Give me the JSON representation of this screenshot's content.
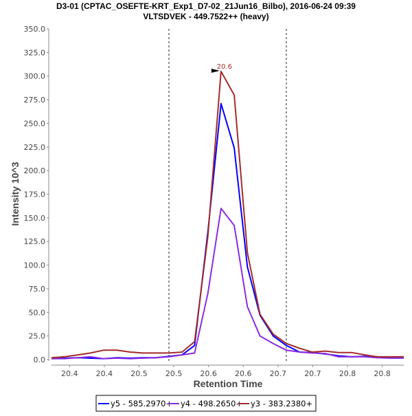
{
  "chart_data": {
    "type": "line",
    "title": "D3-01 (CPTAC_OSEFTE-KRT_Exp1_D7-02_21Jun16_Bilbo), 2016-06-24 09:39",
    "subtitle": "VLTSDVEK - 449.7522++ (heavy)",
    "xlabel": "Retention Time",
    "ylabel": "Intensity 10^3",
    "xlim": [
      20.349,
      20.856
    ],
    "ylim": [
      0,
      350
    ],
    "yticks": [
      0,
      25,
      50,
      75,
      100,
      125,
      150,
      175,
      200,
      225,
      250,
      275,
      300,
      325,
      350
    ],
    "ytick_labels": [
      "0.0",
      "25.0",
      "50.0",
      "75.0",
      "100.0",
      "125.0",
      "150.0",
      "175.0",
      "200.0",
      "225.0",
      "250.0",
      "275.0",
      "300.0",
      "325.0",
      "350.0"
    ],
    "xticks": [
      20.375,
      20.425,
      20.475,
      20.525,
      20.575,
      20.625,
      20.675,
      20.725,
      20.775,
      20.825
    ],
    "xtick_labels": [
      "20.4",
      "20.4",
      "20.5",
      "20.5",
      "20.6",
      "20.6",
      "20.7",
      "20.7",
      "20.8",
      "20.8"
    ],
    "boundary_lines": [
      20.518,
      20.687
    ],
    "peak_annotation": {
      "x": 20.593,
      "y": 305,
      "label": "20.6"
    },
    "x": [
      20.349,
      20.368,
      20.387,
      20.405,
      20.424,
      20.443,
      20.462,
      20.48,
      20.499,
      20.518,
      20.537,
      20.555,
      20.574,
      20.593,
      20.612,
      20.631,
      20.649,
      20.668,
      20.687,
      20.706,
      20.724,
      20.743,
      20.762,
      20.781,
      20.8,
      20.818,
      20.837,
      20.856
    ],
    "series": [
      {
        "name": "y5 - 585.2970+",
        "color": "#0000ff",
        "values": [
          1,
          1.5,
          2,
          1.5,
          1,
          2,
          1.5,
          2,
          2,
          3.5,
          5,
          15,
          135,
          271,
          224,
          98,
          47,
          25,
          15,
          8,
          7.5,
          6,
          4,
          3,
          3.5,
          3,
          2,
          2
        ]
      },
      {
        "name": "y4 - 498.2650+",
        "color": "#8a2be2",
        "values": [
          1,
          1,
          2,
          3,
          1,
          1.5,
          1,
          1.5,
          2,
          3,
          5,
          7,
          70,
          160,
          142,
          56,
          25,
          17,
          10,
          8,
          7,
          6.5,
          3,
          3,
          3,
          2,
          1.5,
          1.5
        ]
      },
      {
        "name": "y3 - 383.2380+",
        "color": "#a52a2a",
        "values": [
          2,
          3,
          5,
          7,
          10,
          10,
          8,
          7,
          7,
          7,
          8,
          19,
          130,
          305,
          280,
          113,
          48,
          27,
          17,
          12,
          8,
          9,
          7.5,
          7.5,
          5,
          3,
          3,
          3
        ]
      }
    ],
    "legend_position": "bottom-center",
    "grid": false
  }
}
